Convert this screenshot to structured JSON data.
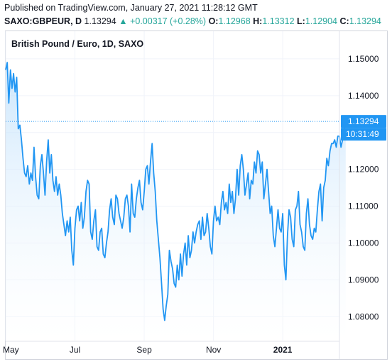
{
  "header": {
    "published": "Published on TradingView.com, January 27, 2021 11:28:12 GMT",
    "symbol": "SAXO:GBPEUR, D",
    "last": "1.13294",
    "arrow": "▲",
    "change": "+0.00317 (+0.28%)",
    "o_label": "O:",
    "o_value": "1.12968",
    "h_label": "H:",
    "h_value": "1.13312",
    "l_label": "L:",
    "l_value": "1.12904",
    "c_label": "C:",
    "c_value": "1.13294"
  },
  "colors": {
    "line": "#2196f3",
    "fill_top": "#bbdefb",
    "grid": "#f0f3fa",
    "up": "#26a69a",
    "price_tag": "#2196f3",
    "axis_text": "#131722"
  },
  "chart_data": {
    "type": "area",
    "title": "British Pound / Euro, 1D, SAXO",
    "last_price_label": "1.13294",
    "countdown_label": "10:31:49",
    "ylim": [
      1.0735,
      1.1575
    ],
    "y_ticks": [
      1.08,
      1.09,
      1.1,
      1.11,
      1.12,
      1.13,
      1.14,
      1.15
    ],
    "y_tick_labels": [
      "1.08000",
      "1.09000",
      "1.10000",
      "1.11000",
      "1.12000",
      "1.13000",
      "1.14000",
      "1.15000"
    ],
    "x_ticks": [
      {
        "label": "May",
        "index": 0,
        "bold": false
      },
      {
        "label": "Jul",
        "index": 44,
        "bold": false
      },
      {
        "label": "Sep",
        "index": 88,
        "bold": false
      },
      {
        "label": "Nov",
        "index": 132,
        "bold": false
      },
      {
        "label": "2021",
        "index": 176,
        "bold": true
      }
    ],
    "x_range": [
      0,
      203
    ],
    "values": [
      1.147,
      1.149,
      1.138,
      1.147,
      1.142,
      1.146,
      1.141,
      1.145,
      1.131,
      1.132,
      1.128,
      1.123,
      1.119,
      1.118,
      1.121,
      1.116,
      1.119,
      1.117,
      1.126,
      1.118,
      1.113,
      1.112,
      1.121,
      1.124,
      1.119,
      1.113,
      1.122,
      1.128,
      1.119,
      1.124,
      1.117,
      1.114,
      1.118,
      1.113,
      1.116,
      1.113,
      1.108,
      1.105,
      1.102,
      1.106,
      1.103,
      1.107,
      1.098,
      1.094,
      1.104,
      1.109,
      1.11,
      1.106,
      1.111,
      1.104,
      1.107,
      1.114,
      1.117,
      1.116,
      1.103,
      1.101,
      1.106,
      1.109,
      1.099,
      1.098,
      1.103,
      1.104,
      1.097,
      1.096,
      1.1,
      1.103,
      1.109,
      1.112,
      1.107,
      1.105,
      1.113,
      1.112,
      1.108,
      1.106,
      1.104,
      1.107,
      1.112,
      1.113,
      1.11,
      1.103,
      1.116,
      1.108,
      1.107,
      1.112,
      1.115,
      1.117,
      1.111,
      1.109,
      1.114,
      1.12,
      1.121,
      1.116,
      1.122,
      1.127,
      1.119,
      1.114,
      1.106,
      1.101,
      1.096,
      1.089,
      1.082,
      1.079,
      1.083,
      1.086,
      1.098,
      1.095,
      1.093,
      1.089,
      1.088,
      1.094,
      1.09,
      1.097,
      1.091,
      1.097,
      1.1,
      1.094,
      1.102,
      1.096,
      1.098,
      1.103,
      1.1,
      1.103,
      1.105,
      1.106,
      1.101,
      1.107,
      1.102,
      1.103,
      1.108,
      1.104,
      1.099,
      1.097,
      1.106,
      1.11,
      1.106,
      1.107,
      1.105,
      1.111,
      1.114,
      1.109,
      1.111,
      1.108,
      1.116,
      1.111,
      1.114,
      1.108,
      1.112,
      1.12,
      1.113,
      1.121,
      1.124,
      1.12,
      1.113,
      1.116,
      1.119,
      1.112,
      1.117,
      1.116,
      1.122,
      1.119,
      1.125,
      1.124,
      1.119,
      1.122,
      1.112,
      1.116,
      1.12,
      1.114,
      1.108,
      1.11,
      1.102,
      1.099,
      1.104,
      1.109,
      1.104,
      1.103,
      1.108,
      1.094,
      1.09,
      1.102,
      1.109,
      1.107,
      1.101,
      1.099,
      1.109,
      1.11,
      1.114,
      1.105,
      1.103,
      1.099,
      1.098,
      1.108,
      1.112,
      1.105,
      1.102,
      1.101,
      1.104,
      1.103,
      1.109,
      1.114,
      1.116,
      1.106,
      1.115,
      1.117,
      1.123,
      1.121,
      1.125,
      1.127,
      1.127,
      1.128,
      1.126,
      1.129,
      1.129,
      1.126,
      1.128,
      1.131,
      1.133
    ]
  }
}
